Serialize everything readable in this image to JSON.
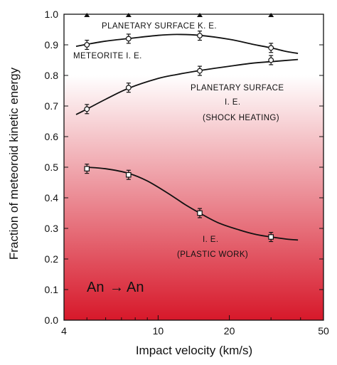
{
  "chart_data": {
    "type": "line",
    "xlabel": "Impact velocity (km/s)",
    "ylabel": "Fraction of meteoroid kinetic energy",
    "x_scale": "log",
    "xlim": [
      4,
      50
    ],
    "ylim": [
      0,
      1.0
    ],
    "x_ticks": [
      4,
      10,
      20,
      50
    ],
    "y_ticks": [
      0.0,
      0.1,
      0.2,
      0.3,
      0.4,
      0.5,
      0.6,
      0.7,
      0.8,
      0.9,
      1.0
    ],
    "top_markers_x": [
      5,
      7.5,
      15,
      30
    ],
    "background": {
      "bottom_color": "#d7182a",
      "top_color": "#ffffff",
      "fade_top_y": 0.8
    },
    "series": [
      {
        "name": "PLANETARY SURFACE K. E.",
        "marker": "none",
        "points": [
          {
            "x": 5,
            "y": 0.9
          },
          {
            "x": 7.5,
            "y": 0.92
          },
          {
            "x": 15,
            "y": 0.93
          },
          {
            "x": 30,
            "y": 0.89
          }
        ],
        "curve": [
          [
            4.5,
            0.895
          ],
          [
            6,
            0.912
          ],
          [
            8,
            0.923
          ],
          [
            10,
            0.931
          ],
          [
            12,
            0.934
          ],
          [
            15,
            0.931
          ],
          [
            20,
            0.918
          ],
          [
            25,
            0.902
          ],
          [
            30,
            0.89
          ],
          [
            35,
            0.878
          ],
          [
            39,
            0.872
          ]
        ]
      },
      {
        "name": "METEORITE I. E.",
        "marker": "circle",
        "points": [
          {
            "x": 5,
            "y": 0.9,
            "err": 0.015
          },
          {
            "x": 7.5,
            "y": 0.92,
            "err": 0.015
          },
          {
            "x": 15,
            "y": 0.93,
            "err": 0.015
          },
          {
            "x": 30,
            "y": 0.89,
            "err": 0.015
          }
        ]
      },
      {
        "name": "PLANETARY SURFACE I. E. (SHOCK HEATING)",
        "marker": "circle",
        "points": [
          {
            "x": 5,
            "y": 0.69,
            "err": 0.015
          },
          {
            "x": 7.5,
            "y": 0.76,
            "err": 0.015
          },
          {
            "x": 15,
            "y": 0.815,
            "err": 0.015
          },
          {
            "x": 30,
            "y": 0.85,
            "err": 0.015
          }
        ],
        "curve": [
          [
            4.5,
            0.672
          ],
          [
            5,
            0.69
          ],
          [
            6,
            0.722
          ],
          [
            7.5,
            0.758
          ],
          [
            10,
            0.79
          ],
          [
            12,
            0.803
          ],
          [
            15,
            0.816
          ],
          [
            20,
            0.83
          ],
          [
            25,
            0.84
          ],
          [
            30,
            0.845
          ],
          [
            39,
            0.852
          ]
        ]
      },
      {
        "name": "I. E. (PLASTIC WORK)",
        "marker": "square",
        "points": [
          {
            "x": 5,
            "y": 0.495,
            "err": 0.015
          },
          {
            "x": 7.5,
            "y": 0.475,
            "err": 0.015
          },
          {
            "x": 15,
            "y": 0.35,
            "err": 0.015
          },
          {
            "x": 30,
            "y": 0.272,
            "err": 0.015
          }
        ],
        "curve": [
          [
            5,
            0.5
          ],
          [
            6,
            0.495
          ],
          [
            7.5,
            0.48
          ],
          [
            9,
            0.455
          ],
          [
            11,
            0.415
          ],
          [
            13,
            0.378
          ],
          [
            15,
            0.35
          ],
          [
            18,
            0.318
          ],
          [
            22,
            0.295
          ],
          [
            26,
            0.28
          ],
          [
            30,
            0.272
          ],
          [
            35,
            0.265
          ],
          [
            39,
            0.262
          ]
        ]
      }
    ],
    "annotations": [
      {
        "id": "ke",
        "text": "PLANETARY  SURFACE K. E."
      },
      {
        "id": "meteorite",
        "text": "METEORITE  I. E."
      },
      {
        "id": "ps1",
        "text": "PLANETARY  SURFACE"
      },
      {
        "id": "ps2",
        "text": "I. E."
      },
      {
        "id": "ps3",
        "text": "(SHOCK HEATING)"
      },
      {
        "id": "pw1",
        "text": "I. E."
      },
      {
        "id": "pw2",
        "text": "(PLASTIC WORK)"
      }
    ],
    "reaction": {
      "left": "An",
      "arrow": "→",
      "right": "An"
    }
  }
}
